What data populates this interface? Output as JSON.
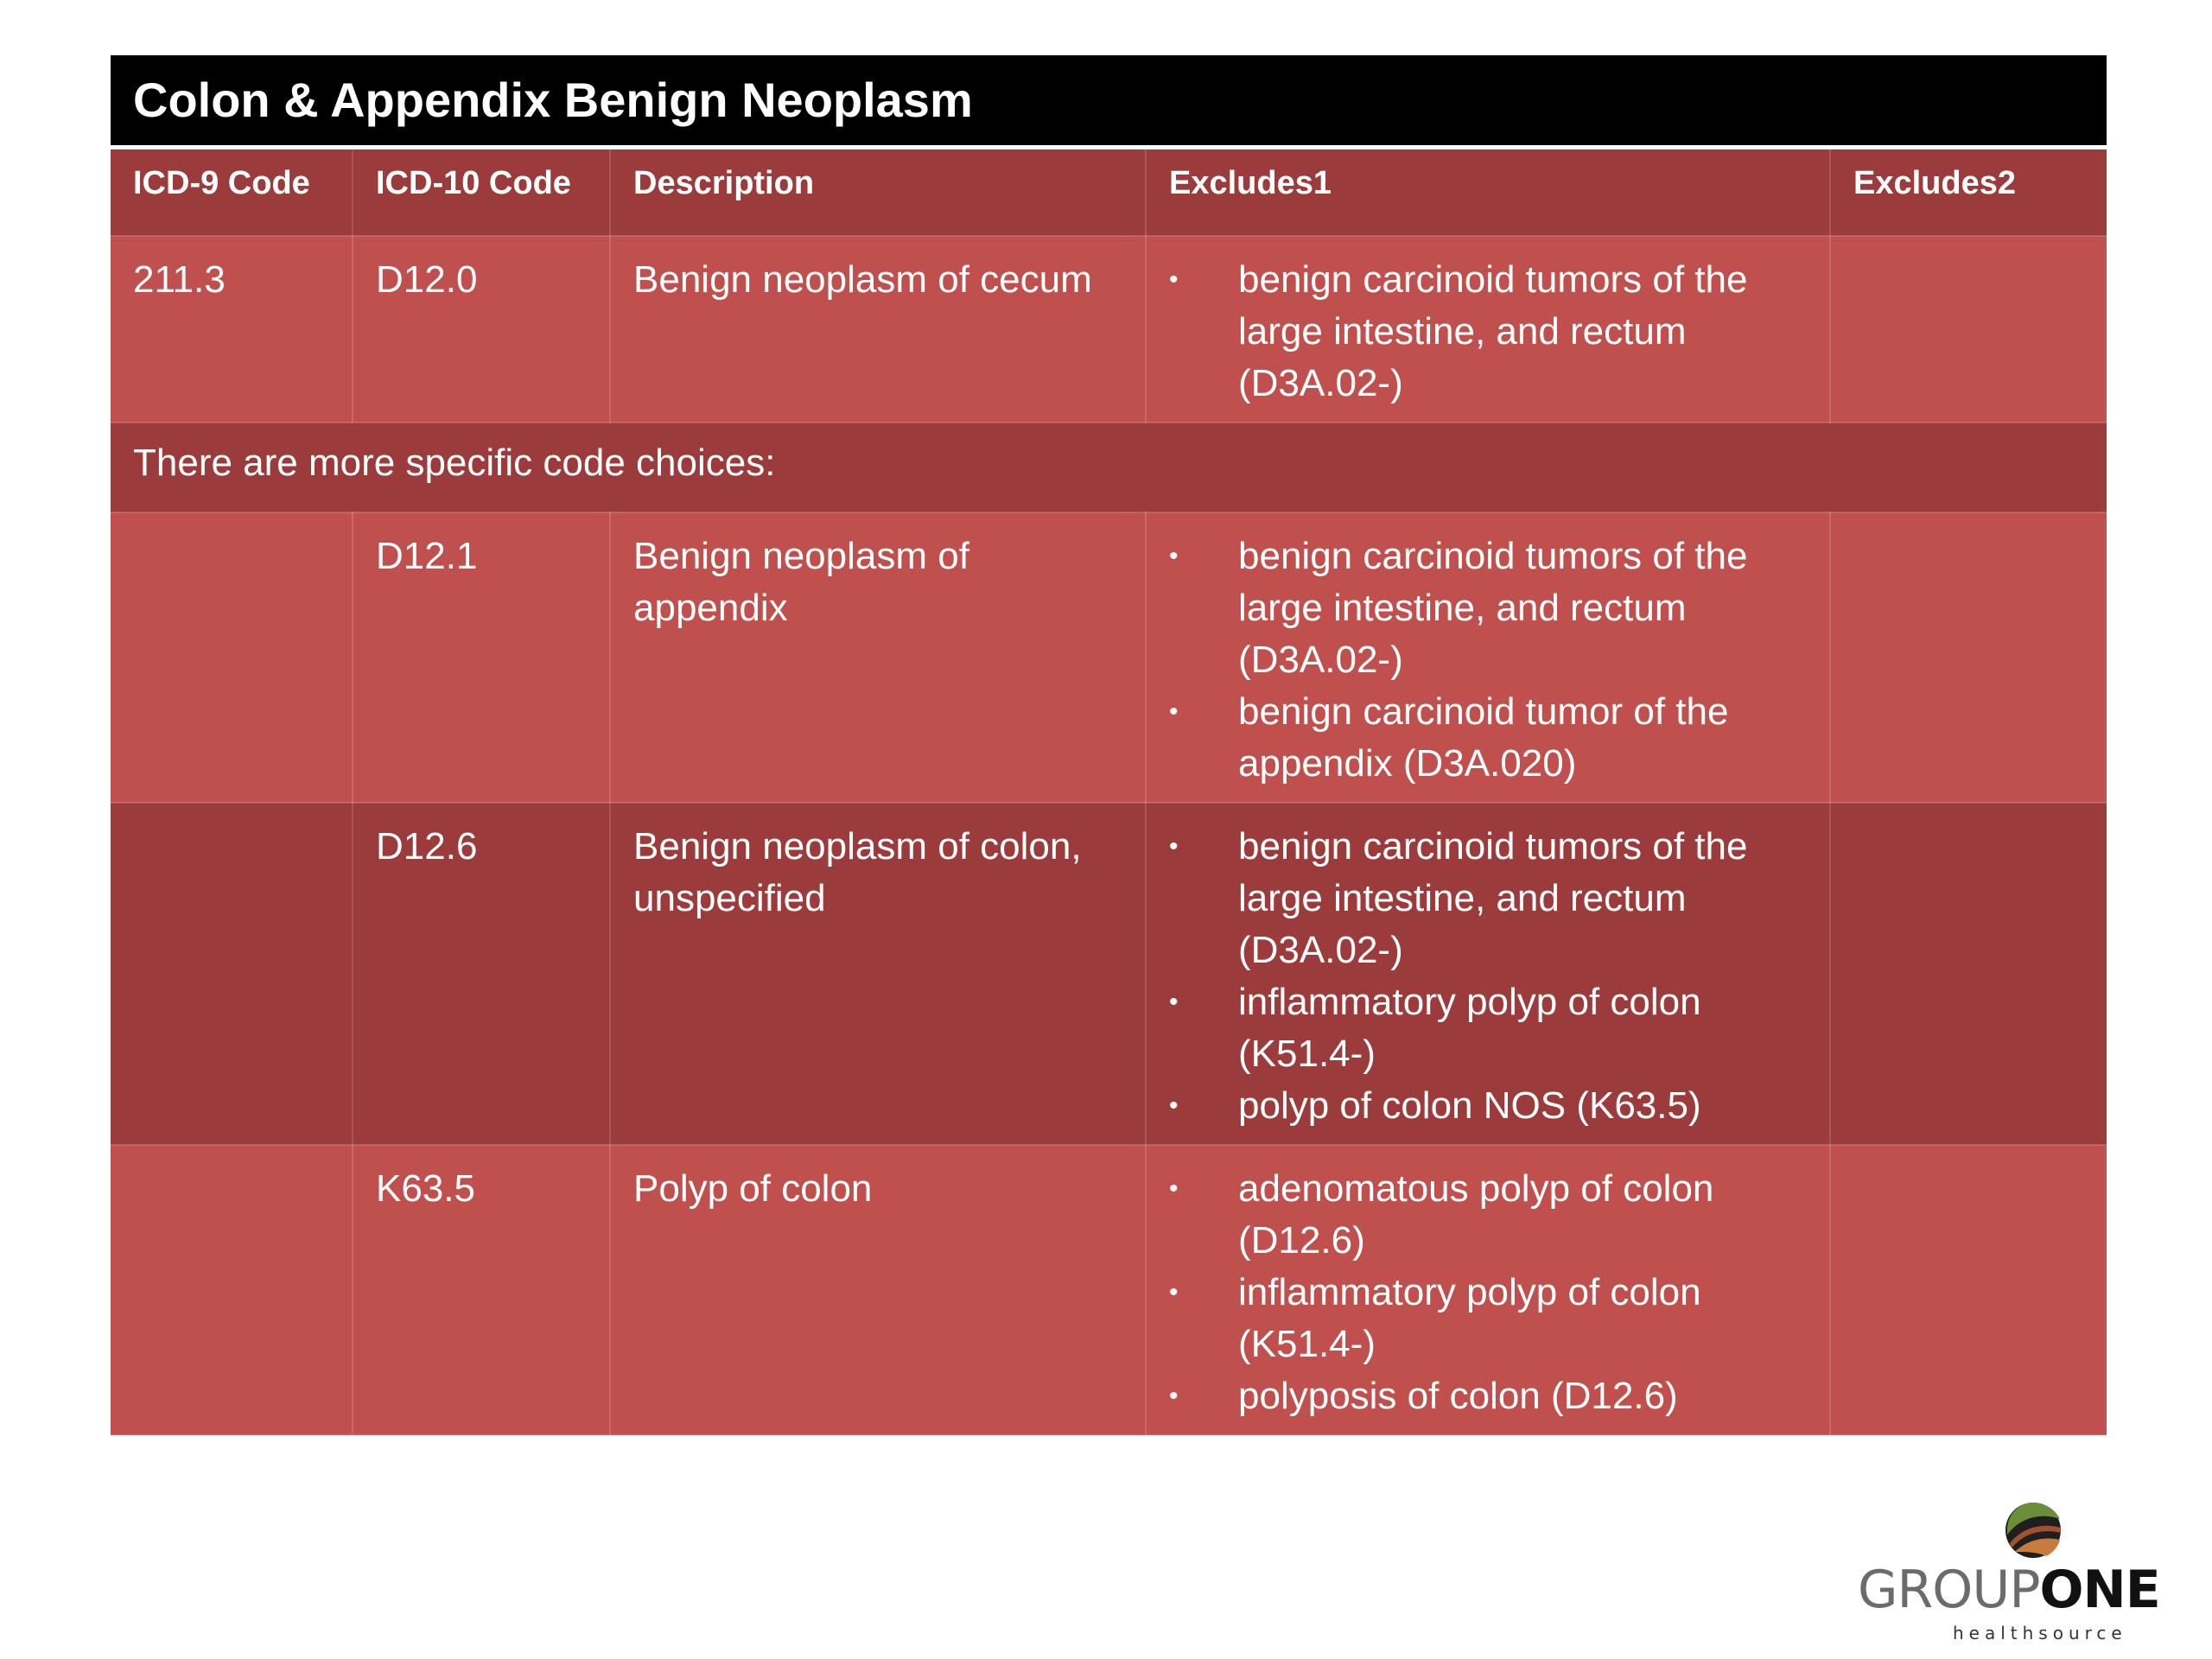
{
  "title": "Colon & Appendix Benign Neoplasm",
  "columns": [
    "ICD-9 Code",
    "ICD-10 Code",
    "Description",
    "Excludes1",
    "Excludes2"
  ],
  "row1": {
    "icd9": "211.3",
    "icd10": "D12.0",
    "description": "Benign neoplasm of cecum",
    "excludes1": [
      "benign carcinoid tumors of the large intestine, and rectum (D3A.02-)"
    ],
    "excludes2": ""
  },
  "note": "There are more specific code choices:",
  "row2": {
    "icd9": "",
    "icd10": "D12.1",
    "description": "Benign neoplasm of appendix",
    "excludes1": [
      "benign carcinoid tumors of the large intestine, and rectum (D3A.02-)",
      "benign carcinoid tumor of the appendix (D3A.020)"
    ],
    "excludes2": ""
  },
  "row3": {
    "icd9": "",
    "icd10": "D12.6",
    "description": "Benign neoplasm of colon, unspecified",
    "excludes1": [
      "benign carcinoid tumors of the large intestine, and rectum (D3A.02-)",
      "inflammatory polyp of colon (K51.4-)",
      "polyp of colon NOS (K63.5)"
    ],
    "excludes2": ""
  },
  "row4": {
    "icd9": "",
    "icd10": "K63.5",
    "description": "Polyp of colon",
    "excludes1": [
      "adenomatous polyp of colon (D12.6)",
      "inflammatory polyp of colon (K51.4-)",
      "polyposis of colon (D12.6)"
    ],
    "excludes2": ""
  },
  "logo": {
    "part1": "GROUP",
    "part2": "ONE",
    "tagline": "healthsource",
    "icon": "swoosh-globe-icon"
  },
  "colors": {
    "title_bg": "#000000",
    "header_bg": "#9c3b3c",
    "row_light": "#c0504d",
    "row_dark": "#9c3b3c"
  },
  "bullet_char": "•"
}
